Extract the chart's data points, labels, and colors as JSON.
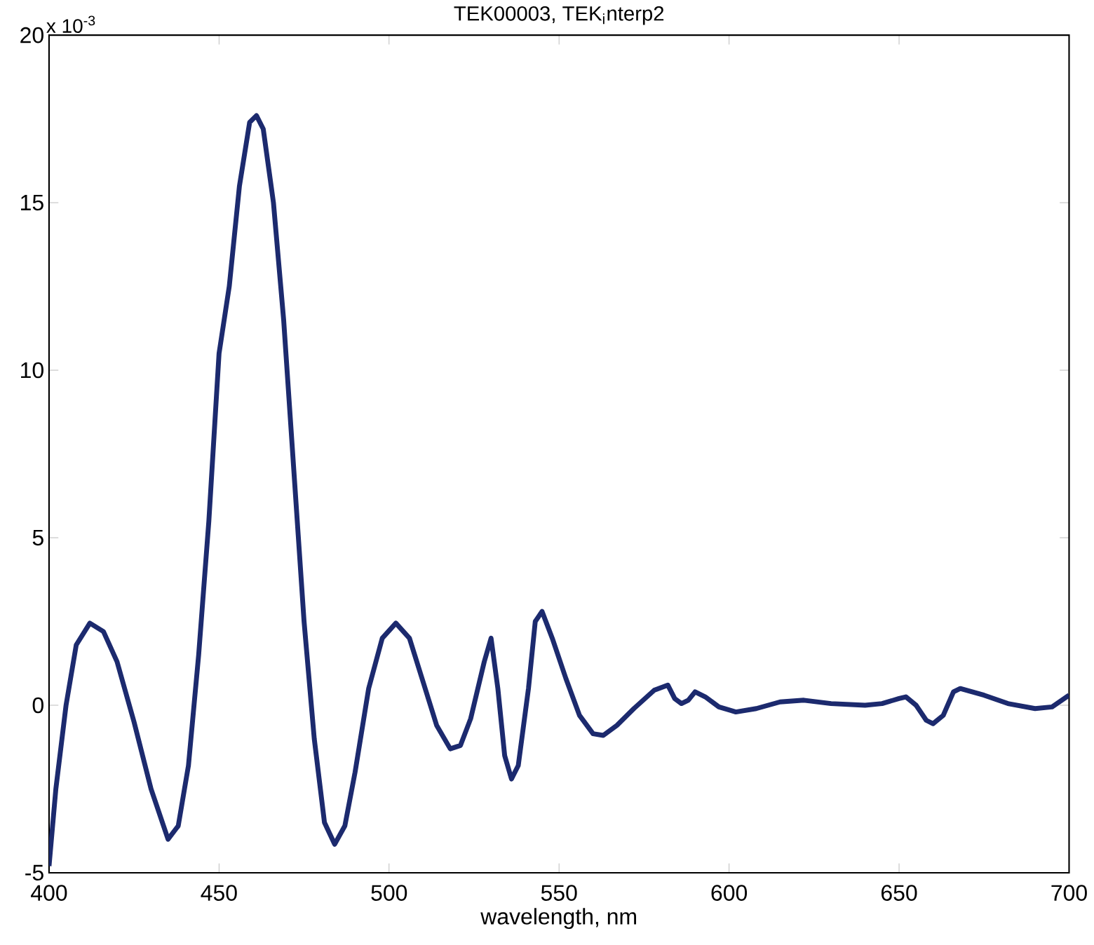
{
  "chart_data": {
    "type": "line",
    "title": "TEK00003, TEK$_{i}$nterp2",
    "xlabel": "wavelength, nm",
    "annotations": [
      "x 10$^{-3}$"
    ],
    "xlim": [
      400,
      700
    ],
    "xticks": [
      400,
      450,
      500,
      550,
      600,
      650,
      700
    ],
    "ylim": [
      -5,
      20
    ],
    "yticks": [
      -5,
      0,
      5,
      10,
      15,
      20
    ],
    "grid": false,
    "marker": "none",
    "line_style": "solid",
    "x": [
      400,
      402,
      405,
      408,
      412,
      416,
      420,
      425,
      430,
      435,
      438,
      441,
      444,
      447,
      450,
      453,
      456,
      459,
      461,
      463,
      466,
      469,
      472,
      475,
      478,
      481,
      484,
      487,
      490,
      494,
      498,
      502,
      506,
      510,
      514,
      518,
      521,
      524,
      528,
      530,
      532,
      534,
      536,
      538,
      541,
      543,
      545,
      548,
      552,
      556,
      560,
      563,
      567,
      572,
      578,
      582,
      584,
      586,
      588,
      590,
      593,
      597,
      602,
      608,
      615,
      622,
      630,
      640,
      645,
      650,
      652,
      655,
      658,
      660,
      663,
      666,
      668,
      675,
      682,
      690,
      695,
      700
    ],
    "series": [
      {
        "color": "#1c2a6e",
        "values": [
          -4.8,
          -2.5,
          0,
          1.8,
          2.45,
          2.2,
          1.3,
          -0.5,
          -2.5,
          -4.0,
          -3.6,
          -1.8,
          1.5,
          5.5,
          10.5,
          12.5,
          15.5,
          17.4,
          17.6,
          17.2,
          15.0,
          11.5,
          7.0,
          2.5,
          -1.0,
          -3.5,
          -4.15,
          -3.6,
          -2.0,
          0.5,
          2.0,
          2.45,
          2.0,
          0.7,
          -0.6,
          -1.3,
          -1.2,
          -0.4,
          1.3,
          2.0,
          0.5,
          -1.5,
          -2.2,
          -1.8,
          0.5,
          2.5,
          2.8,
          2.0,
          0.8,
          -0.3,
          -0.85,
          -0.9,
          -0.6,
          -0.1,
          0.45,
          0.6,
          0.2,
          0.05,
          0.15,
          0.4,
          0.25,
          -0.05,
          -0.2,
          -0.1,
          0.1,
          0.15,
          0.05,
          0.0,
          0.05,
          0.2,
          0.25,
          0.0,
          -0.45,
          -0.55,
          -0.3,
          0.4,
          0.5,
          0.3,
          0.05,
          -0.1,
          -0.05,
          0.3
        ]
      }
    ]
  }
}
